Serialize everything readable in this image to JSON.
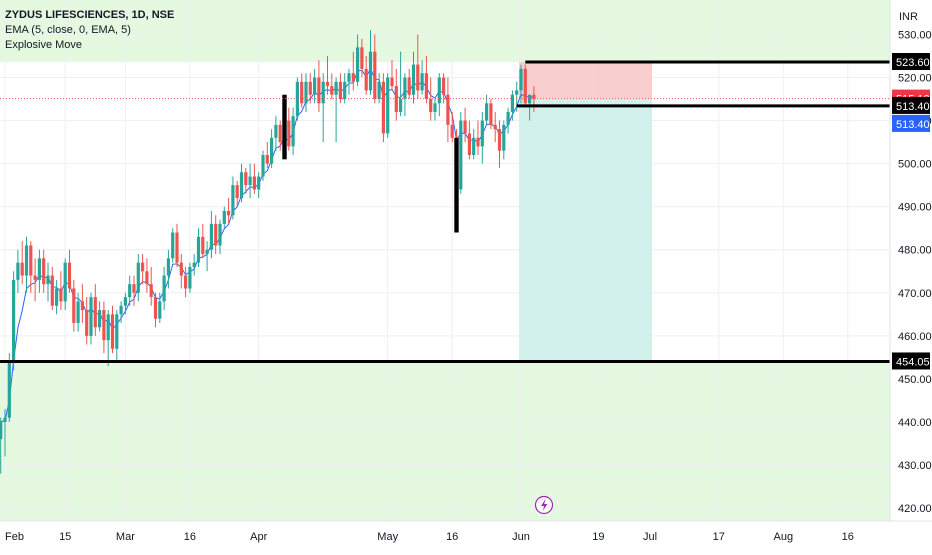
{
  "legend": {
    "title": "ZYDUS LIFESCIENCES, 1D, NSE",
    "ema": "EMA (5, close, 0, EMA, 5)",
    "indicator": "Explosive Move"
  },
  "currency": "INR",
  "colors": {
    "up": "#26a69a",
    "down": "#ef5350",
    "ema": "#2962ff",
    "zone": "#e5f9e0",
    "stop": "#f7c6c5",
    "target": "#cdeeea",
    "last_price_bg": "#f23645",
    "ema_bg": "#2962ff",
    "black": "#000000"
  },
  "chart_data": {
    "type": "candlestick",
    "ylim": [
      417,
      538
    ],
    "yticks": [
      420,
      430,
      440,
      450,
      460,
      470,
      480,
      490,
      500,
      510,
      520,
      530
    ],
    "xticks": [
      {
        "label": "Feb",
        "day": 0
      },
      {
        "label": "15",
        "day": 14
      },
      {
        "label": "Mar",
        "day": 28
      },
      {
        "label": "16",
        "day": 43
      },
      {
        "label": "Apr",
        "day": 59
      },
      {
        "label": "May",
        "day": 89
      },
      {
        "label": "16",
        "day": 104
      },
      {
        "label": "Jun",
        "day": 120
      },
      {
        "label": "19",
        "day": 138
      },
      {
        "label": "Jul",
        "day": 150
      },
      {
        "label": "17",
        "day": 166
      },
      {
        "label": "Aug",
        "day": 181
      },
      {
        "label": "16",
        "day": 196
      }
    ],
    "candles": [
      [
        -3,
        433,
        448,
        431,
        442
      ],
      [
        -2,
        442,
        445,
        430,
        436
      ],
      [
        -1,
        436,
        441,
        428,
        440
      ],
      [
        0,
        440,
        443,
        432,
        441
      ],
      [
        1,
        441,
        456,
        440,
        454
      ],
      [
        2,
        454,
        475,
        452,
        473
      ],
      [
        3,
        473,
        480,
        470,
        477
      ],
      [
        4,
        477,
        482,
        472,
        474
      ],
      [
        5,
        474,
        483,
        470,
        481
      ],
      [
        6,
        481,
        482,
        470,
        474
      ],
      [
        7,
        474,
        478,
        468,
        473
      ],
      [
        8,
        473,
        480,
        470,
        478
      ],
      [
        9,
        478,
        480,
        470,
        472
      ],
      [
        10,
        472,
        477,
        468,
        474
      ],
      [
        11,
        474,
        476,
        466,
        467
      ],
      [
        12,
        467,
        473,
        465,
        471
      ],
      [
        13,
        471,
        475,
        466,
        468
      ],
      [
        14,
        468,
        478,
        466,
        477
      ],
      [
        15,
        477,
        480,
        470,
        471
      ],
      [
        16,
        471,
        473,
        461,
        463
      ],
      [
        17,
        463,
        470,
        461,
        468
      ],
      [
        18,
        468,
        472,
        463,
        466
      ],
      [
        19,
        466,
        469,
        458,
        460
      ],
      [
        20,
        460,
        470,
        458,
        469
      ],
      [
        21,
        469,
        472,
        460,
        462
      ],
      [
        22,
        462,
        468,
        461,
        466
      ],
      [
        23,
        466,
        468,
        456,
        459
      ],
      [
        24,
        459,
        466,
        453,
        465
      ],
      [
        25,
        465,
        467,
        456,
        457
      ],
      [
        26,
        457,
        466,
        454,
        465
      ],
      [
        27,
        465,
        468,
        463,
        467
      ],
      [
        28,
        467,
        470,
        465,
        469
      ],
      [
        29,
        469,
        474,
        467,
        472
      ],
      [
        30,
        472,
        474,
        467,
        470
      ],
      [
        31,
        470,
        479,
        468,
        477
      ],
      [
        32,
        477,
        479,
        472,
        475
      ],
      [
        33,
        475,
        478,
        470,
        472
      ],
      [
        34,
        472,
        476,
        467,
        469
      ],
      [
        35,
        469,
        470,
        462,
        464
      ],
      [
        36,
        464,
        470,
        463,
        468
      ],
      [
        37,
        468,
        476,
        466,
        474
      ],
      [
        38,
        474,
        480,
        471,
        478
      ],
      [
        39,
        478,
        485,
        477,
        484
      ],
      [
        40,
        484,
        486,
        476,
        477
      ],
      [
        41,
        477,
        479,
        471,
        474
      ],
      [
        42,
        474,
        476,
        469,
        471
      ],
      [
        43,
        471,
        477,
        470,
        476
      ],
      [
        44,
        476,
        479,
        474,
        477
      ],
      [
        45,
        477,
        485,
        476,
        483
      ],
      [
        46,
        483,
        486,
        478,
        479
      ],
      [
        47,
        479,
        482,
        475,
        480
      ],
      [
        48,
        480,
        489,
        478,
        486
      ],
      [
        49,
        486,
        488,
        479,
        481
      ],
      [
        50,
        481,
        487,
        479,
        486
      ],
      [
        51,
        486,
        490,
        485,
        489
      ],
      [
        52,
        489,
        492,
        486,
        488
      ],
      [
        53,
        488,
        497,
        487,
        495
      ],
      [
        54,
        495,
        496,
        490,
        492
      ],
      [
        55,
        492,
        500,
        491,
        498
      ],
      [
        56,
        498,
        499,
        493,
        495
      ],
      [
        57,
        495,
        500,
        492,
        497
      ],
      [
        58,
        497,
        500,
        493,
        494
      ],
      [
        59,
        494,
        498,
        492,
        497
      ],
      [
        60,
        497,
        503,
        496,
        502
      ],
      [
        61,
        502,
        505,
        499,
        500
      ],
      [
        62,
        500,
        508,
        499,
        506
      ],
      [
        63,
        506,
        511,
        503,
        509
      ],
      [
        64,
        509,
        510,
        503,
        505
      ],
      [
        65,
        505,
        512,
        504,
        510
      ],
      [
        66,
        510,
        513,
        503,
        504
      ],
      [
        67,
        504,
        513,
        502,
        511
      ],
      [
        68,
        511,
        520,
        510,
        519
      ],
      [
        69,
        519,
        521,
        513,
        514
      ],
      [
        70,
        514,
        521,
        512,
        519
      ],
      [
        71,
        519,
        521,
        514,
        516
      ],
      [
        72,
        516,
        522,
        514,
        520
      ],
      [
        73,
        520,
        524,
        512,
        514
      ],
      [
        74,
        514,
        521,
        505,
        519
      ],
      [
        75,
        519,
        525,
        516,
        518
      ],
      [
        76,
        518,
        521,
        515,
        516
      ],
      [
        77,
        516,
        520,
        505,
        519
      ],
      [
        78,
        519,
        521,
        514,
        515
      ],
      [
        79,
        515,
        521,
        514,
        519
      ],
      [
        80,
        519,
        522,
        516,
        521
      ],
      [
        81,
        521,
        526,
        517,
        519
      ],
      [
        82,
        519,
        530,
        518,
        527
      ],
      [
        83,
        527,
        529,
        520,
        522
      ],
      [
        84,
        522,
        525,
        516,
        517
      ],
      [
        85,
        517,
        531,
        516,
        526
      ],
      [
        86,
        526,
        530,
        514,
        515
      ],
      [
        87,
        515,
        521,
        514,
        519
      ],
      [
        88,
        519,
        521,
        505,
        507
      ],
      [
        89,
        507,
        521,
        506,
        520
      ],
      [
        90,
        520,
        524,
        517,
        518
      ],
      [
        91,
        518,
        522,
        510,
        512
      ],
      [
        92,
        512,
        526,
        511,
        515
      ],
      [
        93,
        515,
        521,
        511,
        520
      ],
      [
        94,
        520,
        522,
        515,
        516
      ],
      [
        95,
        516,
        526,
        514,
        523
      ],
      [
        96,
        523,
        530,
        515,
        517
      ],
      [
        97,
        517,
        524,
        516,
        521
      ],
      [
        98,
        521,
        525,
        514,
        515
      ],
      [
        99,
        515,
        520,
        510,
        512
      ],
      [
        100,
        512,
        515,
        510,
        514
      ],
      [
        101,
        514,
        521,
        511,
        520
      ],
      [
        102,
        520,
        521,
        514,
        516
      ],
      [
        103,
        516,
        520,
        505,
        509
      ],
      [
        104,
        509,
        512,
        505,
        506
      ],
      [
        105,
        506,
        508,
        492,
        494
      ],
      [
        106,
        494,
        512,
        493,
        510
      ],
      [
        107,
        510,
        513,
        505,
        507
      ],
      [
        108,
        507,
        510,
        501,
        502
      ],
      [
        109,
        502,
        508,
        501,
        506
      ],
      [
        110,
        506,
        510,
        502,
        504
      ],
      [
        111,
        504,
        512,
        500,
        510
      ],
      [
        112,
        510,
        516,
        509,
        514
      ],
      [
        113,
        514,
        515,
        508,
        509
      ],
      [
        114,
        509,
        512,
        505,
        508
      ],
      [
        115,
        508,
        510,
        499,
        503
      ],
      [
        116,
        503,
        510,
        501,
        509
      ],
      [
        117,
        509,
        513,
        507,
        512
      ],
      [
        118,
        512,
        517,
        510,
        516
      ],
      [
        119,
        516,
        519,
        512,
        517
      ],
      [
        120,
        517,
        523,
        514,
        522
      ],
      [
        121,
        522,
        523,
        513,
        514
      ],
      [
        122,
        514,
        516,
        510,
        516
      ],
      [
        123,
        516,
        518,
        512,
        515
      ]
    ],
    "ema_period": 5,
    "explosive_bars": [
      {
        "day": 65,
        "low": 501,
        "high": 516
      },
      {
        "day": 105,
        "low": 484,
        "high": 506
      }
    ],
    "levels": [
      {
        "value": 523.6,
        "label": "523.60",
        "day_start": 121,
        "day_end": 198
      },
      {
        "value": 513.4,
        "label": "513.40",
        "day_start": 119,
        "day_end": 198
      },
      {
        "value": 454.05,
        "label": "454.05",
        "day_start": -3,
        "day_end": 198
      }
    ],
    "zones": [
      {
        "from": 523.6,
        "to": 538
      },
      {
        "from": 417,
        "to": 454.05
      }
    ],
    "position": {
      "entry": 515.1,
      "stop": 523.6,
      "target": 454.05,
      "day_start": 120,
      "day_end": 150
    },
    "price_labels": [
      {
        "value": 523.6,
        "label": "523.60",
        "style": "black"
      },
      {
        "value": 515.1,
        "label": "515.10",
        "style": "red"
      },
      {
        "value": 513.4,
        "label": "513.40",
        "style": "black"
      },
      {
        "value": 513.4,
        "label": "513.40",
        "style": "blue",
        "offset_rows": 1
      },
      {
        "value": 454.05,
        "label": "454.05",
        "style": "black"
      }
    ],
    "last_price": 515.1
  }
}
